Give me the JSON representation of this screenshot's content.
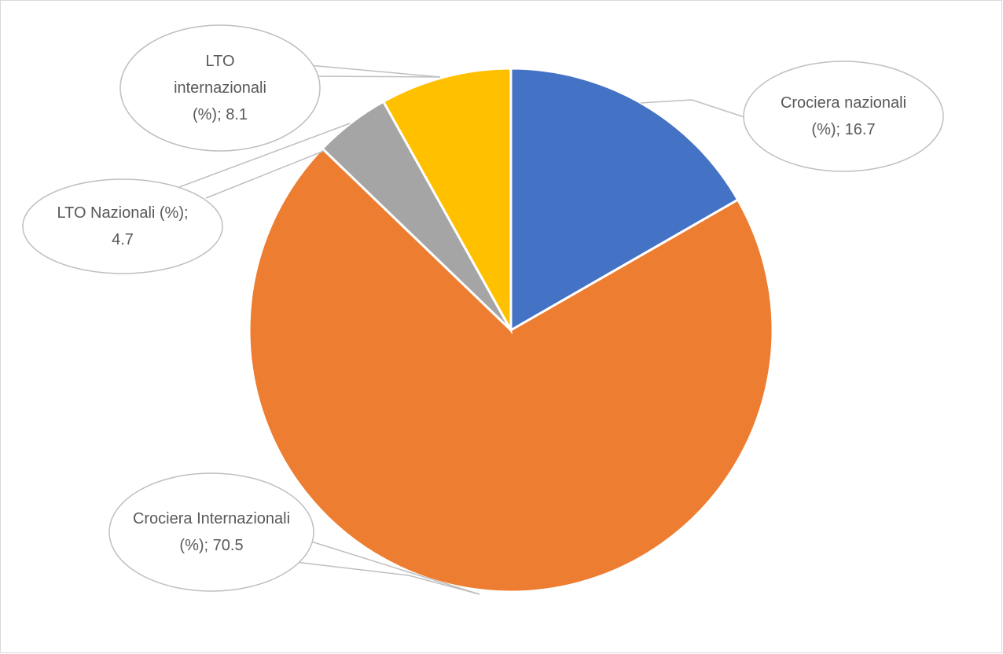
{
  "chart_data": {
    "type": "pie",
    "values": [
      16.7,
      70.5,
      4.7,
      8.1
    ],
    "value_labels": [
      "Crociera nazionali (%); 16.7",
      "Crociera Internazionali (%); 70.5",
      "LTO Nazionali (%); 4.7",
      "LTO internazionali (%); 8.1"
    ],
    "colors": [
      "#4472c4",
      "#ed7d31",
      "#a5a5a5",
      "#ffc000"
    ]
  }
}
